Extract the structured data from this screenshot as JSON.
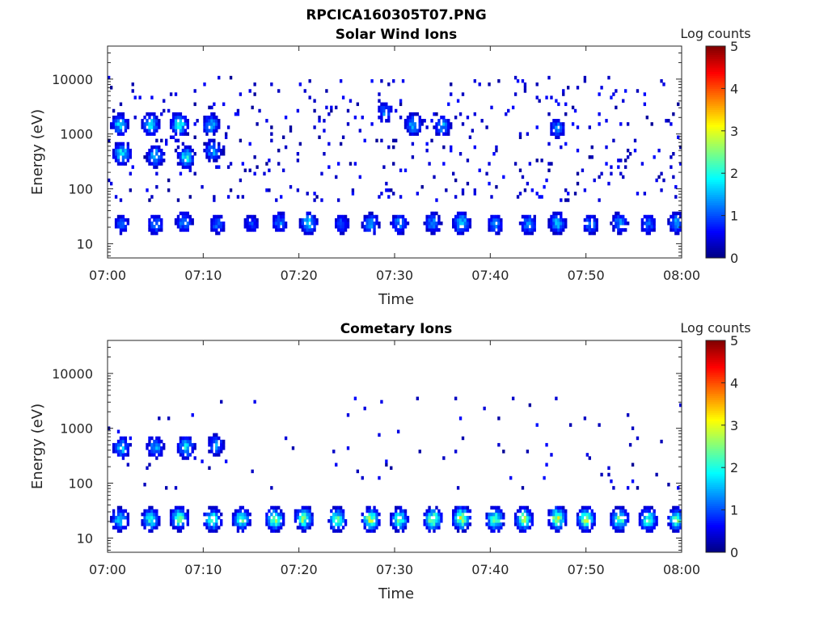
{
  "figure": {
    "title": "RPCICA160305T07.PNG"
  },
  "chart_data": [
    {
      "type": "heatmap",
      "title": "Solar Wind Ions",
      "xlabel": "Time",
      "ylabel": "Energy (eV)",
      "x_range": [
        "07:00",
        "08:00"
      ],
      "x_ticks": [
        "07:00",
        "07:10",
        "07:20",
        "07:30",
        "07:40",
        "07:50",
        "08:00"
      ],
      "y_scale": "log",
      "y_range": [
        5.5,
        40000
      ],
      "y_ticks": [
        10,
        100,
        1000,
        10000
      ],
      "y_tick_labels": [
        "10",
        "100",
        "1000",
        "10000"
      ],
      "colorbar": {
        "label": "Log counts",
        "range": [
          0,
          5
        ],
        "ticks": [
          "0",
          "1",
          "2",
          "3",
          "4",
          "5"
        ],
        "colormap": "jet"
      },
      "seed": 11,
      "bursts": [
        {
          "t": 1.5,
          "e": 23,
          "v": 1.0
        },
        {
          "t": 5.0,
          "e": 23,
          "v": 1.2
        },
        {
          "t": 8.0,
          "e": 25,
          "v": 1.3
        },
        {
          "t": 11.5,
          "e": 23,
          "v": 1.1
        },
        {
          "t": 15.0,
          "e": 23,
          "v": 0.9
        },
        {
          "t": 18.0,
          "e": 25,
          "v": 1.2
        },
        {
          "t": 21.0,
          "e": 24,
          "v": 1.6
        },
        {
          "t": 24.5,
          "e": 23,
          "v": 1.0
        },
        {
          "t": 27.5,
          "e": 23,
          "v": 1.4
        },
        {
          "t": 30.5,
          "e": 23,
          "v": 1.3
        },
        {
          "t": 34.0,
          "e": 24,
          "v": 1.3
        },
        {
          "t": 37.0,
          "e": 24,
          "v": 1.8
        },
        {
          "t": 40.5,
          "e": 23,
          "v": 1.2
        },
        {
          "t": 44.0,
          "e": 23,
          "v": 1.3
        },
        {
          "t": 47.0,
          "e": 24,
          "v": 1.5
        },
        {
          "t": 50.5,
          "e": 23,
          "v": 1.2
        },
        {
          "t": 53.5,
          "e": 24,
          "v": 1.3
        },
        {
          "t": 56.5,
          "e": 23,
          "v": 1.1
        },
        {
          "t": 59.5,
          "e": 24,
          "v": 1.4
        },
        {
          "t": 1.5,
          "e": 450,
          "v": 1.8
        },
        {
          "t": 5.0,
          "e": 400,
          "v": 1.6
        },
        {
          "t": 8.2,
          "e": 380,
          "v": 1.8
        },
        {
          "t": 11.0,
          "e": 500,
          "v": 1.4
        },
        {
          "t": 1.3,
          "e": 1500,
          "v": 1.6
        },
        {
          "t": 4.5,
          "e": 1500,
          "v": 1.8
        },
        {
          "t": 7.5,
          "e": 1500,
          "v": 1.9
        },
        {
          "t": 10.8,
          "e": 1500,
          "v": 1.5
        },
        {
          "t": 29.0,
          "e": 2500,
          "v": 1.2
        },
        {
          "t": 32.0,
          "e": 1500,
          "v": 1.6
        },
        {
          "t": 35.0,
          "e": 1400,
          "v": 1.4
        },
        {
          "t": 47.0,
          "e": 1300,
          "v": 1.2
        }
      ],
      "scatter_density": 0.045,
      "scatter_range": [
        60,
        12000
      ]
    },
    {
      "type": "heatmap",
      "title": "Cometary Ions",
      "xlabel": "Time",
      "ylabel": "Energy (eV)",
      "x_range": [
        "07:00",
        "08:00"
      ],
      "x_ticks": [
        "07:00",
        "07:10",
        "07:20",
        "07:30",
        "07:40",
        "07:50",
        "08:00"
      ],
      "y_scale": "log",
      "y_range": [
        5.5,
        40000
      ],
      "y_ticks": [
        10,
        100,
        1000,
        10000
      ],
      "y_tick_labels": [
        "10",
        "100",
        "1000",
        "10000"
      ],
      "colorbar": {
        "label": "Log counts",
        "range": [
          0,
          5
        ],
        "ticks": [
          "0",
          "1",
          "2",
          "3",
          "4",
          "5"
        ],
        "colormap": "jet"
      },
      "seed": 29,
      "bursts": [
        {
          "t": 1.3,
          "e": 22,
          "v": 1.8
        },
        {
          "t": 4.5,
          "e": 22,
          "v": 2.0
        },
        {
          "t": 7.5,
          "e": 23,
          "v": 2.3
        },
        {
          "t": 11.0,
          "e": 22,
          "v": 2.2
        },
        {
          "t": 14.0,
          "e": 22,
          "v": 2.1
        },
        {
          "t": 17.5,
          "e": 22,
          "v": 2.4
        },
        {
          "t": 20.5,
          "e": 23,
          "v": 2.5
        },
        {
          "t": 24.0,
          "e": 22,
          "v": 2.3
        },
        {
          "t": 27.5,
          "e": 22,
          "v": 2.6
        },
        {
          "t": 30.5,
          "e": 22,
          "v": 2.2
        },
        {
          "t": 34.0,
          "e": 22,
          "v": 2.5
        },
        {
          "t": 37.0,
          "e": 23,
          "v": 2.8
        },
        {
          "t": 40.5,
          "e": 22,
          "v": 2.4
        },
        {
          "t": 43.5,
          "e": 22,
          "v": 2.5
        },
        {
          "t": 47.0,
          "e": 23,
          "v": 2.7
        },
        {
          "t": 50.0,
          "e": 22,
          "v": 2.6
        },
        {
          "t": 53.5,
          "e": 22,
          "v": 2.3
        },
        {
          "t": 56.5,
          "e": 22,
          "v": 2.2
        },
        {
          "t": 59.5,
          "e": 22,
          "v": 2.2
        },
        {
          "t": 1.5,
          "e": 450,
          "v": 1.6
        },
        {
          "t": 5.0,
          "e": 450,
          "v": 1.4
        },
        {
          "t": 8.2,
          "e": 450,
          "v": 1.7
        },
        {
          "t": 11.3,
          "e": 500,
          "v": 1.3
        }
      ],
      "scatter_density": 0.012,
      "scatter_range": [
        80,
        4000
      ]
    }
  ]
}
